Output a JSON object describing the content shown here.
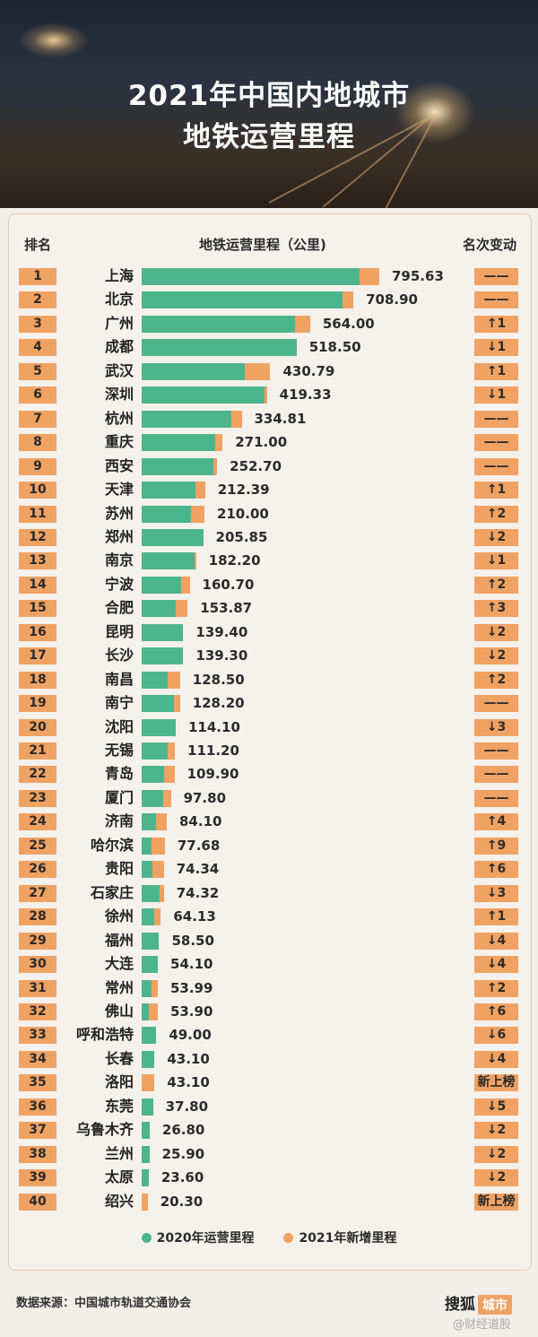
{
  "header": {
    "title_line1": "2021年中国内地城市",
    "title_line2": "地铁运营里程"
  },
  "columns": {
    "rank": "排名",
    "mileage": "地铁运营里程（公里)",
    "change": "名次变动"
  },
  "legend": {
    "series1": "2020年运营里程",
    "series2": "2021年新增里程"
  },
  "footer": {
    "source": "数据来源：中国城市轨道交通协会",
    "brand": "搜狐",
    "brand_tag": "城市",
    "watermark": "@财经道股"
  },
  "colors": {
    "series_2020": "#4db58e",
    "series_2021_new": "#f0a263"
  },
  "chart_data": {
    "type": "bar",
    "orientation": "horizontal",
    "stacked": true,
    "title": "2021年中国内地城市地铁运营里程",
    "xlabel": "地铁运营里程（公里)",
    "series": [
      {
        "name": "2020年运营里程",
        "color": "#4db58e"
      },
      {
        "name": "2021年新增里程",
        "color": "#f0a263"
      }
    ],
    "rows": [
      {
        "rank": "1",
        "city": "上海",
        "total": "795.63",
        "base": 729,
        "added": 66.63,
        "change": "——"
      },
      {
        "rank": "2",
        "city": "北京",
        "total": "708.90",
        "base": 674,
        "added": 34.9,
        "change": "——"
      },
      {
        "rank": "3",
        "city": "广州",
        "total": "564.00",
        "base": 512,
        "added": 52,
        "change": "↑1"
      },
      {
        "rank": "4",
        "city": "成都",
        "total": "518.50",
        "base": 518.5,
        "added": 0,
        "change": "↓1"
      },
      {
        "rank": "5",
        "city": "武汉",
        "total": "430.79",
        "base": 345,
        "added": 85.79,
        "change": "↑1"
      },
      {
        "rank": "6",
        "city": "深圳",
        "total": "419.33",
        "base": 411,
        "added": 8.33,
        "change": "↓1"
      },
      {
        "rank": "7",
        "city": "杭州",
        "total": "334.81",
        "base": 301,
        "added": 33.81,
        "change": "——"
      },
      {
        "rank": "8",
        "city": "重庆",
        "total": "271.00",
        "base": 245,
        "added": 26,
        "change": "——"
      },
      {
        "rank": "9",
        "city": "西安",
        "total": "252.70",
        "base": 239,
        "added": 13.7,
        "change": "——"
      },
      {
        "rank": "10",
        "city": "天津",
        "total": "212.39",
        "base": 180,
        "added": 32.39,
        "change": "↑1"
      },
      {
        "rank": "11",
        "city": "苏州",
        "total": "210.00",
        "base": 166,
        "added": 44,
        "change": "↑2"
      },
      {
        "rank": "12",
        "city": "郑州",
        "total": "205.85",
        "base": 205.85,
        "added": 0,
        "change": "↓2"
      },
      {
        "rank": "13",
        "city": "南京",
        "total": "182.20",
        "base": 178,
        "added": 4.2,
        "change": "↓1"
      },
      {
        "rank": "14",
        "city": "宁波",
        "total": "160.70",
        "base": 132,
        "added": 28.7,
        "change": "↑2"
      },
      {
        "rank": "15",
        "city": "合肥",
        "total": "153.87",
        "base": 115,
        "added": 38.87,
        "change": "↑3"
      },
      {
        "rank": "16",
        "city": "昆明",
        "total": "139.40",
        "base": 139.4,
        "added": 0,
        "change": "↓2"
      },
      {
        "rank": "17",
        "city": "长沙",
        "total": "139.30",
        "base": 139.3,
        "added": 0,
        "change": "↓2"
      },
      {
        "rank": "18",
        "city": "南昌",
        "total": "128.50",
        "base": 88,
        "added": 40.5,
        "change": "↑2"
      },
      {
        "rank": "19",
        "city": "南宁",
        "total": "128.20",
        "base": 108,
        "added": 20.2,
        "change": "——"
      },
      {
        "rank": "20",
        "city": "沈阳",
        "total": "114.10",
        "base": 114.1,
        "added": 0,
        "change": "↓3"
      },
      {
        "rank": "21",
        "city": "无锡",
        "total": "111.20",
        "base": 88,
        "added": 23.2,
        "change": "——"
      },
      {
        "rank": "22",
        "city": "青岛",
        "total": "109.90",
        "base": 74,
        "added": 35.9,
        "change": "——"
      },
      {
        "rank": "23",
        "city": "厦门",
        "total": "97.80",
        "base": 72,
        "added": 25.8,
        "change": "——"
      },
      {
        "rank": "24",
        "city": "济南",
        "total": "84.10",
        "base": 47,
        "added": 37.1,
        "change": "↑4"
      },
      {
        "rank": "25",
        "city": "哈尔滨",
        "total": "77.68",
        "base": 34,
        "added": 43.68,
        "change": "↑9"
      },
      {
        "rank": "26",
        "city": "贵阳",
        "total": "74.34",
        "base": 35,
        "added": 39.34,
        "change": "↑6"
      },
      {
        "rank": "27",
        "city": "石家庄",
        "total": "74.32",
        "base": 60,
        "added": 14.32,
        "change": "↓3"
      },
      {
        "rank": "28",
        "city": "徐州",
        "total": "64.13",
        "base": 43,
        "added": 21.13,
        "change": "↑1"
      },
      {
        "rank": "29",
        "city": "福州",
        "total": "58.50",
        "base": 58.5,
        "added": 0,
        "change": "↓4"
      },
      {
        "rank": "30",
        "city": "大连",
        "total": "54.10",
        "base": 54.1,
        "added": 0,
        "change": "↓4"
      },
      {
        "rank": "31",
        "city": "常州",
        "total": "53.99",
        "base": 32,
        "added": 21.99,
        "change": "↑2"
      },
      {
        "rank": "32",
        "city": "佛山",
        "total": "53.90",
        "base": 24,
        "added": 29.9,
        "change": "↑6"
      },
      {
        "rank": "33",
        "city": "呼和浩特",
        "total": "49.00",
        "base": 49,
        "added": 0,
        "change": "↓6"
      },
      {
        "rank": "34",
        "city": "长春",
        "total": "43.10",
        "base": 43.1,
        "added": 0,
        "change": "↓4"
      },
      {
        "rank": "35",
        "city": "洛阳",
        "total": "43.10",
        "base": 0,
        "added": 43.1,
        "change": "新上榜"
      },
      {
        "rank": "36",
        "city": "东莞",
        "total": "37.80",
        "base": 37.8,
        "added": 0,
        "change": "↓5"
      },
      {
        "rank": "37",
        "city": "乌鲁木齐",
        "total": "26.80",
        "base": 26.8,
        "added": 0,
        "change": "↓2"
      },
      {
        "rank": "38",
        "city": "兰州",
        "total": "25.90",
        "base": 25.9,
        "added": 0,
        "change": "↓2"
      },
      {
        "rank": "39",
        "city": "太原",
        "total": "23.60",
        "base": 23.6,
        "added": 0,
        "change": "↓2"
      },
      {
        "rank": "40",
        "city": "绍兴",
        "total": "20.30",
        "base": 0,
        "added": 20.3,
        "change": "新上榜"
      }
    ]
  }
}
